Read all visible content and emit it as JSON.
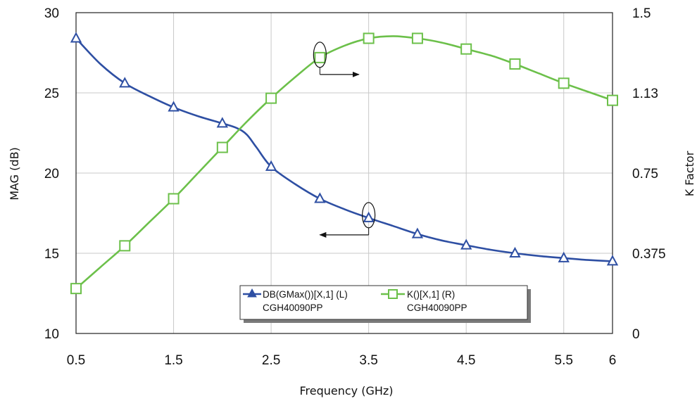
{
  "chart_data": {
    "type": "line",
    "title": "",
    "xlabel": "Frequency (GHz)",
    "ylabel_left": "MAG (dB)",
    "ylabel_right": "K Factor",
    "xlim": [
      0.5,
      6
    ],
    "ylim_left": [
      10,
      30
    ],
    "ylim_right": [
      0,
      1.5
    ],
    "x_ticks": [
      "0.5",
      "1.5",
      "2.5",
      "3.5",
      "4.5",
      "5.5",
      "6"
    ],
    "y_left_ticks": [
      "10",
      "15",
      "20",
      "25",
      "30"
    ],
    "y_right_ticks": [
      "0",
      "0.375",
      "0.75",
      "1.13",
      "1.5"
    ],
    "grid": true,
    "legend_position": "bottom-center",
    "series": [
      {
        "name": "DB(GMax())[X,1] (L)",
        "sublabel": "CGH40090PP",
        "axis": "left",
        "color": "#2e4fa3",
        "marker": "triangle",
        "x": [
          0.5,
          1.0,
          1.5,
          2.0,
          2.5,
          3.0,
          3.5,
          4.0,
          4.5,
          5.0,
          5.5,
          6.0
        ],
        "values": [
          28.4,
          25.6,
          24.1,
          23.1,
          20.4,
          18.4,
          17.2,
          16.2,
          15.5,
          15.0,
          14.7,
          14.5
        ],
        "curve": [
          [
            0.5,
            28.4
          ],
          [
            0.75,
            26.8
          ],
          [
            1.0,
            25.6
          ],
          [
            1.25,
            24.8
          ],
          [
            1.5,
            24.1
          ],
          [
            1.75,
            23.55
          ],
          [
            2.0,
            23.1
          ],
          [
            2.15,
            22.8
          ],
          [
            2.25,
            22.4
          ],
          [
            2.35,
            21.6
          ],
          [
            2.5,
            20.4
          ],
          [
            2.75,
            19.3
          ],
          [
            3.0,
            18.4
          ],
          [
            3.25,
            17.75
          ],
          [
            3.5,
            17.2
          ],
          [
            3.75,
            16.7
          ],
          [
            4.0,
            16.2
          ],
          [
            4.25,
            15.8
          ],
          [
            4.5,
            15.5
          ],
          [
            4.75,
            15.22
          ],
          [
            5.0,
            15.0
          ],
          [
            5.25,
            14.83
          ],
          [
            5.5,
            14.7
          ],
          [
            5.75,
            14.58
          ],
          [
            6.0,
            14.5
          ]
        ]
      },
      {
        "name": "K()[X,1] (R)",
        "sublabel": "CGH40090PP",
        "axis": "right",
        "color": "#6cc04a",
        "marker": "square",
        "x": [
          0.5,
          1.0,
          1.5,
          2.0,
          2.5,
          3.0,
          3.5,
          4.0,
          4.5,
          5.0,
          5.5,
          6.0
        ],
        "values": [
          0.21,
          0.41,
          0.63,
          0.87,
          1.1,
          1.29,
          1.38,
          1.38,
          1.33,
          1.26,
          1.17,
          1.09
        ],
        "curve": [
          [
            0.5,
            0.21
          ],
          [
            0.75,
            0.31
          ],
          [
            1.0,
            0.41
          ],
          [
            1.25,
            0.52
          ],
          [
            1.5,
            0.63
          ],
          [
            1.75,
            0.75
          ],
          [
            2.0,
            0.87
          ],
          [
            2.25,
            0.99
          ],
          [
            2.5,
            1.1
          ],
          [
            2.75,
            1.2
          ],
          [
            3.0,
            1.29
          ],
          [
            3.25,
            1.345
          ],
          [
            3.5,
            1.38
          ],
          [
            3.75,
            1.39
          ],
          [
            4.0,
            1.38
          ],
          [
            4.25,
            1.36
          ],
          [
            4.5,
            1.33
          ],
          [
            4.75,
            1.3
          ],
          [
            5.0,
            1.26
          ],
          [
            5.25,
            1.215
          ],
          [
            5.5,
            1.17
          ],
          [
            5.75,
            1.13
          ],
          [
            6.0,
            1.09
          ]
        ]
      }
    ],
    "annotations": [
      {
        "target_series": "K()[X,1] (R)",
        "at_x": 3.0,
        "at_y": 1.29,
        "arrow": "right",
        "arrow_to_x": 3.4
      },
      {
        "target_series": "DB(GMax())[X,1] (L)",
        "at_x": 3.5,
        "at_y": 17.2,
        "arrow": "left",
        "arrow_to_x": 3.0
      }
    ]
  }
}
